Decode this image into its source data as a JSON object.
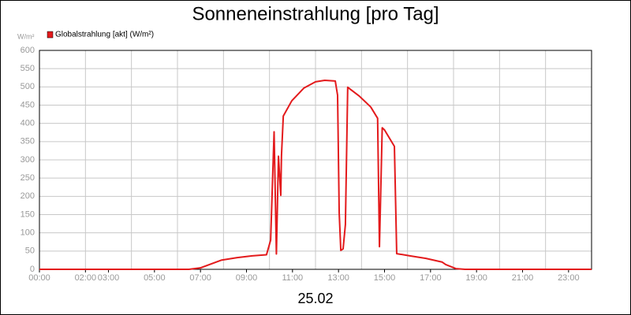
{
  "chart_data": {
    "type": "line",
    "title": "Sonneneinstrahlung [pro Tag]",
    "y_unit": "W/m²",
    "x_label": "25.02",
    "xlim": [
      0,
      24
    ],
    "ylim": [
      0,
      600
    ],
    "yticks": [
      0,
      50,
      100,
      150,
      200,
      250,
      300,
      350,
      400,
      450,
      500,
      550,
      600
    ],
    "xticks": [
      {
        "value": 0,
        "label": "00:00"
      },
      {
        "value": 2,
        "label": "02:00"
      },
      {
        "value": 3,
        "label": "03:00"
      },
      {
        "value": 5,
        "label": "05:00"
      },
      {
        "value": 7,
        "label": "07:00"
      },
      {
        "value": 9,
        "label": "09:00"
      },
      {
        "value": 11,
        "label": "11:00"
      },
      {
        "value": 13,
        "label": "13:00"
      },
      {
        "value": 15,
        "label": "15:00"
      },
      {
        "value": 17,
        "label": "17:00"
      },
      {
        "value": 19,
        "label": "19:00"
      },
      {
        "value": 21,
        "label": "21:00"
      },
      {
        "value": 23,
        "label": "23:00"
      }
    ],
    "xgrid": [
      2,
      4,
      6,
      8,
      10,
      12,
      14,
      16,
      18,
      20,
      22
    ],
    "grid": true,
    "legend": "top-left",
    "series": [
      {
        "name": "Globalstrahlung [akt] (W/m²)",
        "color": "#e31a1c",
        "x": [
          0,
          6.5,
          7.0,
          7.9,
          8.6,
          9.25,
          9.87,
          10.05,
          10.2,
          10.3,
          10.39,
          10.49,
          10.52,
          10.6,
          10.97,
          11.5,
          12.0,
          12.4,
          12.86,
          12.96,
          13.03,
          13.1,
          13.2,
          13.3,
          13.4,
          13.9,
          14.4,
          14.7,
          14.78,
          14.9,
          15.0,
          15.43,
          15.53,
          16.1,
          16.8,
          17.5,
          17.66,
          18.1,
          18.5,
          24
        ],
        "values": [
          0,
          0,
          4,
          25,
          32,
          37,
          40,
          80,
          377,
          42,
          310,
          203,
          310,
          420,
          462,
          497,
          514,
          518,
          516,
          477,
          155,
          52,
          56,
          123,
          499,
          475,
          445,
          414,
          62,
          388,
          382,
          337,
          43,
          37,
          30,
          20,
          13,
          2,
          0,
          0
        ]
      }
    ]
  }
}
